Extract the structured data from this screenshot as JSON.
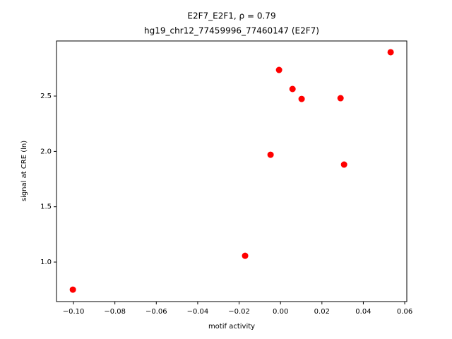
{
  "chart_data": {
    "type": "scatter",
    "title": "E2F7_E2F1, ρ = 0.79",
    "subtitle": "hg19_chr12_77459996_77460147 (E2F7)",
    "x_label": "motif activity",
    "y_label": "signal at CRE (ln)",
    "color": "#ff0000",
    "x": [
      -0.1003,
      -0.0171,
      -0.0048,
      -0.0007,
      0.0058,
      0.0102,
      0.029,
      0.0307,
      0.0532
    ],
    "values": [
      0.751,
      1.057,
      1.97,
      2.736,
      2.564,
      2.474,
      2.481,
      1.881,
      2.896
    ],
    "xlim": [
      -0.1082,
      0.061
    ],
    "ylim": [
      0.643,
      2.998
    ],
    "xticks": [
      {
        "value": -0.1,
        "label": "−0.10"
      },
      {
        "value": -0.08,
        "label": "−0.08"
      },
      {
        "value": -0.06,
        "label": "−0.06"
      },
      {
        "value": -0.04,
        "label": "−0.04"
      },
      {
        "value": -0.02,
        "label": "−0.02"
      },
      {
        "value": 0,
        "label": "0.00"
      },
      {
        "value": 0.02,
        "label": "0.02"
      },
      {
        "value": 0.04,
        "label": "0.04"
      },
      {
        "value": 0.06,
        "label": "0.06"
      }
    ],
    "yticks": [
      {
        "value": 1,
        "label": "1.0"
      },
      1.5,
      {
        "value": 2,
        "label": "2.0"
      },
      2.5
    ],
    "grid": false
  }
}
